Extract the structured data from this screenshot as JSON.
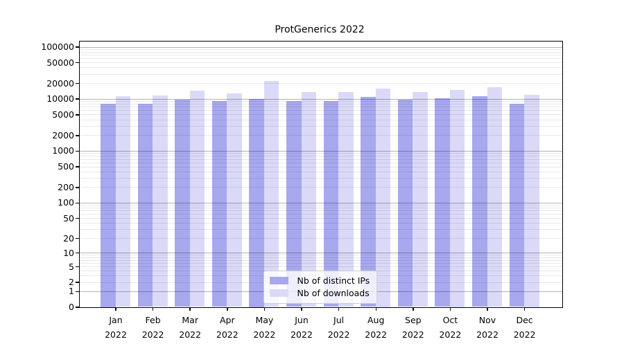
{
  "chart_data": {
    "type": "bar",
    "title": "ProtGenerics 2022",
    "categories": [
      "Jan",
      "Feb",
      "Mar",
      "Apr",
      "May",
      "Jun",
      "Jul",
      "Aug",
      "Sep",
      "Oct",
      "Nov",
      "Dec"
    ],
    "year_label": "2022",
    "series": [
      {
        "name": "Nb of distinct IPs",
        "color": "#a8a8ef",
        "values": [
          8000,
          8050,
          9700,
          9100,
          9900,
          9000,
          9000,
          10800,
          9650,
          10200,
          11300,
          8100
        ]
      },
      {
        "name": "Nb of downloads",
        "color": "#dadaf8",
        "values": [
          11300,
          11500,
          14500,
          12500,
          22000,
          13400,
          13500,
          15700,
          13600,
          15000,
          16800,
          12100
        ]
      }
    ],
    "y_ticks": [
      100000,
      50000,
      20000,
      10000,
      5000,
      2000,
      1000,
      500,
      200,
      100,
      50,
      20,
      10,
      5,
      2,
      1,
      0
    ],
    "y_scale": "log10(1+y)",
    "ylim": [
      0,
      128000
    ],
    "grid": true,
    "legend_position": "lower-center",
    "colors": {
      "major_grid": "#b3b3b3",
      "minor_grid": "#ebebeb",
      "axis": "#000000",
      "background": "#ffffff",
      "bar_distinct_ips": "#a8a8ef",
      "bar_downloads": "#dadaf8"
    }
  }
}
